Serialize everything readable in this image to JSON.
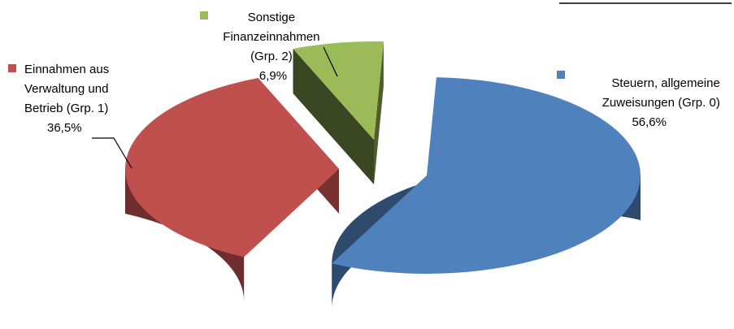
{
  "chart_data": {
    "type": "pie",
    "style": "3d-exploded",
    "title": "",
    "legend": "none",
    "slices": [
      {
        "name": "Steuern, allgemeine Zuweisungen (Grp. 0)",
        "label_lines": [
          "Steuern, allgemeine",
          "Zuweisungen (Grp. 0)",
          "56,6%"
        ],
        "value": 56.6,
        "value_label": "56,6%",
        "color": "#4F81BD"
      },
      {
        "name": "Einnahmen aus Verwaltung und Betrieb (Grp. 1)",
        "label_lines": [
          "Einnahmen aus",
          "Verwaltung und",
          "Betrieb (Grp. 1)",
          "36,5%"
        ],
        "value": 36.5,
        "value_label": "36,5%",
        "color": "#C0504D"
      },
      {
        "name": "Sonstige Finanzeinnahmen (Grp. 2)",
        "label_lines": [
          "Sonstige",
          "Finanzeinnahmen",
          "(Grp. 2)",
          "6,9%"
        ],
        "value": 6.9,
        "value_label": "6,9%",
        "color": "#9BBB59"
      }
    ]
  }
}
